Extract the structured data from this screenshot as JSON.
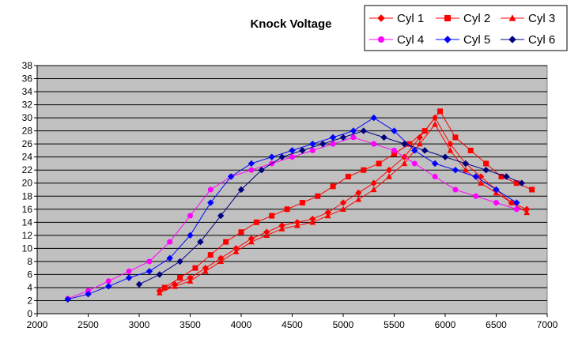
{
  "chart_data": {
    "type": "line",
    "title": "Knock Voltage",
    "xlabel": "",
    "ylabel": "",
    "xlim": [
      2000,
      7000
    ],
    "ylim": [
      0,
      38
    ],
    "x_ticks": [
      2000,
      2500,
      3000,
      3500,
      4000,
      4500,
      5000,
      5500,
      6000,
      6500,
      7000
    ],
    "y_ticks": [
      0,
      2,
      4,
      6,
      8,
      10,
      12,
      14,
      16,
      18,
      20,
      22,
      24,
      26,
      28,
      30,
      32,
      34,
      36,
      38
    ],
    "grid": "horizontal",
    "plot_background": "#c0c0c0",
    "legend_position": "top-right",
    "series": [
      {
        "name": "Cyl 1",
        "color": "#ff0000",
        "marker": "diamond",
        "x": [
          3200,
          3350,
          3500,
          3650,
          3800,
          3950,
          4100,
          4250,
          4400,
          4550,
          4700,
          4850,
          5000,
          5150,
          5300,
          5450,
          5600,
          5750,
          5900,
          6050,
          6200,
          6350,
          6500,
          6650,
          6800
        ],
        "y": [
          3.5,
          4.5,
          5.5,
          7,
          8.5,
          10,
          11.5,
          12.5,
          13.5,
          14,
          14.5,
          15.5,
          17,
          18.5,
          20,
          22,
          24,
          27,
          30,
          26,
          23,
          21,
          19,
          17,
          16
        ]
      },
      {
        "name": "Cyl 2",
        "color": "#ff0000",
        "marker": "square",
        "x": [
          3250,
          3400,
          3550,
          3700,
          3850,
          4000,
          4150,
          4300,
          4450,
          4600,
          4750,
          4900,
          5050,
          5200,
          5350,
          5500,
          5650,
          5800,
          5950,
          6100,
          6250,
          6400,
          6550,
          6700,
          6850
        ],
        "y": [
          4,
          5.5,
          7,
          9,
          11,
          12.5,
          14,
          15,
          16,
          17,
          18,
          19.5,
          21,
          22,
          23,
          24.5,
          26,
          28,
          31,
          27,
          25,
          23,
          21,
          20,
          19
        ]
      },
      {
        "name": "Cyl 3",
        "color": "#ff0000",
        "marker": "triangle",
        "x": [
          3200,
          3350,
          3500,
          3650,
          3800,
          3950,
          4100,
          4250,
          4400,
          4550,
          4700,
          4850,
          5000,
          5150,
          5300,
          5450,
          5600,
          5750,
          5900,
          6050,
          6200,
          6350,
          6500,
          6650,
          6800
        ],
        "y": [
          3.2,
          4.2,
          5,
          6.5,
          8,
          9.5,
          11,
          12,
          13,
          13.5,
          14,
          15,
          16,
          17.5,
          19,
          21,
          23,
          26,
          29,
          25,
          22,
          20,
          18.5,
          17,
          15.5
        ]
      },
      {
        "name": "Cyl 4",
        "color": "#ff00ff",
        "marker": "circle",
        "x": [
          2300,
          2500,
          2700,
          2900,
          3100,
          3300,
          3500,
          3700,
          3900,
          4100,
          4300,
          4500,
          4700,
          4900,
          5100,
          5300,
          5500,
          5700,
          5900,
          6100,
          6300,
          6500,
          6700
        ],
        "y": [
          2.3,
          3.5,
          5,
          6.5,
          8,
          11,
          15,
          19,
          21,
          22,
          23,
          24,
          25,
          26,
          27,
          26,
          25,
          23,
          21,
          19,
          18,
          17,
          16
        ]
      },
      {
        "name": "Cyl 5",
        "color": "#0000ff",
        "marker": "diamond",
        "x": [
          2300,
          2500,
          2700,
          2900,
          3100,
          3300,
          3500,
          3700,
          3900,
          4100,
          4300,
          4500,
          4700,
          4900,
          5100,
          5300,
          5500,
          5700,
          5900,
          6100,
          6300,
          6500,
          6700
        ],
        "y": [
          2.2,
          3,
          4.2,
          5.5,
          6.5,
          8.5,
          12,
          17,
          21,
          23,
          24,
          25,
          26,
          27,
          28,
          30,
          28,
          25,
          23,
          22,
          21,
          19,
          17
        ]
      },
      {
        "name": "Cyl 6",
        "color": "#000080",
        "marker": "diamond",
        "x": [
          3000,
          3200,
          3400,
          3600,
          3800,
          4000,
          4200,
          4400,
          4600,
          4800,
          5000,
          5200,
          5400,
          5600,
          5800,
          6000,
          6200,
          6400,
          6600,
          6750
        ],
        "y": [
          4.5,
          6,
          8,
          11,
          15,
          19,
          22,
          24,
          25,
          26,
          27,
          28,
          27,
          26,
          25,
          24,
          23,
          22,
          21,
          20
        ]
      }
    ]
  }
}
